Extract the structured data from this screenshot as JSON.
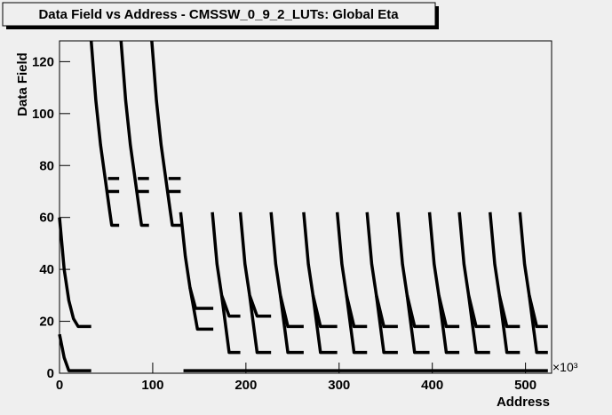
{
  "chart_data": {
    "type": "line",
    "title": "Data Field vs Address - CMSSW_0_9_2_LUTs: Global Eta",
    "x_label": "Address",
    "y_label": "Data Field",
    "x_multiplier": "×10³",
    "color": "#000000",
    "xlim": [
      0,
      528
    ],
    "ylim": [
      0,
      128
    ],
    "xticks": [
      0,
      100,
      200,
      300,
      400,
      500
    ],
    "yticks": [
      0,
      20,
      40,
      60,
      80,
      100,
      120
    ],
    "series": [
      {
        "x": [
          0,
          5,
          10,
          15,
          20,
          34
        ],
        "values": [
          60,
          40,
          28,
          21,
          18,
          18
        ]
      },
      {
        "x": [
          0,
          5,
          10,
          34
        ],
        "values": [
          15,
          6,
          1,
          1
        ]
      },
      {
        "x": [
          34,
          39,
          44,
          49,
          54,
          56,
          64
        ],
        "values": [
          128,
          105,
          88,
          75,
          62,
          57,
          57
        ]
      },
      {
        "x": [
          52,
          64
        ],
        "values": [
          75,
          75
        ]
      },
      {
        "x": [
          52,
          64
        ],
        "values": [
          70,
          70
        ]
      },
      {
        "x": [
          66,
          71,
          76,
          81,
          86,
          88,
          96
        ],
        "values": [
          128,
          105,
          88,
          75,
          62,
          57,
          57
        ]
      },
      {
        "x": [
          84,
          96
        ],
        "values": [
          75,
          75
        ]
      },
      {
        "x": [
          84,
          96
        ],
        "values": [
          70,
          70
        ]
      },
      {
        "x": [
          99,
          104,
          109,
          114,
          119,
          121,
          130
        ],
        "values": [
          128,
          105,
          88,
          75,
          62,
          57,
          57
        ]
      },
      {
        "x": [
          117,
          130
        ],
        "values": [
          75,
          75
        ]
      },
      {
        "x": [
          117,
          130
        ],
        "values": [
          70,
          70
        ]
      },
      {
        "x": [
          130,
          135,
          140,
          146,
          165
        ],
        "values": [
          62,
          45,
          33,
          25,
          25
        ]
      },
      {
        "x": [
          140,
          148,
          165
        ],
        "values": [
          33,
          17,
          17
        ]
      },
      {
        "x": [
          133,
          524
        ],
        "values": [
          1,
          1
        ]
      },
      {
        "x": [
          164,
          169,
          174,
          182,
          194
        ],
        "values": [
          62,
          42,
          30,
          22,
          22
        ]
      },
      {
        "x": [
          174,
          182,
          194
        ],
        "values": [
          30,
          8,
          8
        ]
      },
      {
        "x": [
          194,
          199,
          204,
          212,
          227
        ],
        "values": [
          62,
          42,
          30,
          22,
          22
        ]
      },
      {
        "x": [
          204,
          212,
          227
        ],
        "values": [
          30,
          8,
          8
        ]
      },
      {
        "x": [
          227,
          232,
          237,
          245,
          262
        ],
        "values": [
          62,
          42,
          30,
          18,
          18
        ]
      },
      {
        "x": [
          237,
          245,
          262
        ],
        "values": [
          30,
          8,
          8
        ]
      },
      {
        "x": [
          262,
          267,
          272,
          280,
          298
        ],
        "values": [
          62,
          42,
          30,
          18,
          18
        ]
      },
      {
        "x": [
          272,
          280,
          298
        ],
        "values": [
          30,
          8,
          8
        ]
      },
      {
        "x": [
          298,
          303,
          308,
          316,
          330
        ],
        "values": [
          62,
          42,
          30,
          18,
          18
        ]
      },
      {
        "x": [
          308,
          316,
          330
        ],
        "values": [
          30,
          8,
          8
        ]
      },
      {
        "x": [
          330,
          335,
          340,
          348,
          363
        ],
        "values": [
          62,
          42,
          30,
          18,
          18
        ]
      },
      {
        "x": [
          340,
          348,
          363
        ],
        "values": [
          30,
          8,
          8
        ]
      },
      {
        "x": [
          363,
          368,
          373,
          381,
          397
        ],
        "values": [
          62,
          42,
          30,
          18,
          18
        ]
      },
      {
        "x": [
          373,
          381,
          397
        ],
        "values": [
          30,
          8,
          8
        ]
      },
      {
        "x": [
          397,
          402,
          407,
          415,
          429
        ],
        "values": [
          62,
          42,
          30,
          18,
          18
        ]
      },
      {
        "x": [
          407,
          415,
          429
        ],
        "values": [
          30,
          8,
          8
        ]
      },
      {
        "x": [
          429,
          434,
          439,
          447,
          462
        ],
        "values": [
          62,
          42,
          30,
          18,
          18
        ]
      },
      {
        "x": [
          439,
          447,
          462
        ],
        "values": [
          30,
          8,
          8
        ]
      },
      {
        "x": [
          462,
          467,
          472,
          480,
          494
        ],
        "values": [
          62,
          42,
          30,
          18,
          18
        ]
      },
      {
        "x": [
          472,
          480,
          494
        ],
        "values": [
          30,
          8,
          8
        ]
      },
      {
        "x": [
          494,
          499,
          504,
          512,
          524
        ],
        "values": [
          62,
          42,
          30,
          18,
          18
        ]
      },
      {
        "x": [
          504,
          512,
          524
        ],
        "values": [
          30,
          8,
          8
        ]
      }
    ]
  }
}
